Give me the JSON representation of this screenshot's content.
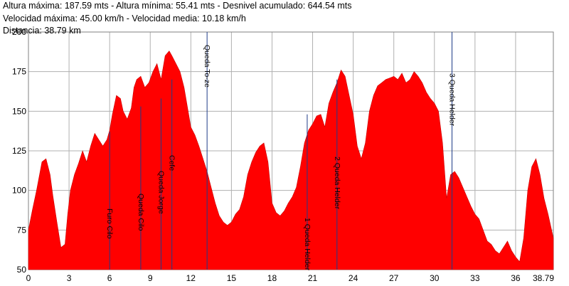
{
  "header": {
    "line1": "Altura máxima: 187.59 mts - Altura mínima: 55.41 mts - Desnivel acumulado: 644.54 mts",
    "line2": "Velocidad máxima: 45.00 km/h - Velocidad media: 10.18 km/h",
    "line3": "Distancia: 38.79 km"
  },
  "colors": {
    "fill": "#ff0000",
    "grid": "#b0b0b0",
    "waypoint_line": "#1f3c88"
  },
  "chart_data": {
    "type": "area",
    "title": "",
    "xlabel": "",
    "ylabel": "",
    "xlim": [
      0,
      38.79
    ],
    "ylim": [
      50,
      200
    ],
    "grid": true,
    "x_ticks": [
      {
        "v": 0,
        "label": "0"
      },
      {
        "v": 3,
        "label": "3"
      },
      {
        "v": 6,
        "label": "6"
      },
      {
        "v": 9,
        "label": "9"
      },
      {
        "v": 12,
        "label": "12"
      },
      {
        "v": 15,
        "label": "15"
      },
      {
        "v": 18,
        "label": "18"
      },
      {
        "v": 21,
        "label": "21"
      },
      {
        "v": 24,
        "label": "24"
      },
      {
        "v": 27,
        "label": "27"
      },
      {
        "v": 30,
        "label": "30"
      },
      {
        "v": 33,
        "label": "33"
      },
      {
        "v": 36,
        "label": "36"
      },
      {
        "v": 38.79,
        "label": "38.79"
      }
    ],
    "y_ticks": [
      {
        "v": 50,
        "label": "50"
      },
      {
        "v": 75,
        "label": "75"
      },
      {
        "v": 100,
        "label": "100"
      },
      {
        "v": 125,
        "label": "125"
      },
      {
        "v": 150,
        "label": "150"
      },
      {
        "v": 175,
        "label": "175"
      },
      {
        "v": 200,
        "label": "200"
      }
    ],
    "series": [
      {
        "x": [
          0,
          0.3,
          0.6,
          1.0,
          1.3,
          1.6,
          1.8,
          2.1,
          2.4,
          2.7,
          2.9,
          3.1,
          3.4,
          3.7,
          4.0,
          4.3,
          4.6,
          4.9,
          5.2,
          5.5,
          5.8,
          6.0,
          6.2,
          6.5,
          6.8,
          7.0,
          7.3,
          7.6,
          7.8,
          8.0,
          8.3,
          8.6,
          8.9,
          9.2,
          9.5,
          9.8,
          10.1,
          10.4,
          10.6,
          10.9,
          11.2,
          11.5,
          11.8,
          12.0,
          12.3,
          12.6,
          12.9,
          13.2,
          13.5,
          13.8,
          14.1,
          14.4,
          14.7,
          15.0,
          15.3,
          15.6,
          15.9,
          16.2,
          16.5,
          16.8,
          17.1,
          17.4,
          17.7,
          18.0,
          18.3,
          18.6,
          18.9,
          19.2,
          19.5,
          19.8,
          20.1,
          20.4,
          20.7,
          21.0,
          21.3,
          21.6,
          21.9,
          22.2,
          22.5,
          22.8,
          23.1,
          23.4,
          23.7,
          24.0,
          24.3,
          24.6,
          24.9,
          25.2,
          25.5,
          25.8,
          26.1,
          26.4,
          26.7,
          27.0,
          27.3,
          27.6,
          27.9,
          28.2,
          28.5,
          28.8,
          29.1,
          29.4,
          29.7,
          30.0,
          30.3,
          30.6,
          30.9,
          31.2,
          31.5,
          31.8,
          32.1,
          32.4,
          32.7,
          33.0,
          33.3,
          33.6,
          33.9,
          34.2,
          34.5,
          34.8,
          35.1,
          35.4,
          35.7,
          36.0,
          36.3,
          36.6,
          36.9,
          37.2,
          37.5,
          37.8,
          38.1,
          38.4,
          38.79
        ],
        "y": [
          75,
          88,
          100,
          118,
          120,
          110,
          97,
          80,
          64,
          66,
          85,
          100,
          110,
          117,
          125,
          118,
          128,
          136,
          132,
          128,
          132,
          138,
          148,
          160,
          158,
          150,
          145,
          152,
          165,
          170,
          172,
          165,
          168,
          175,
          180,
          170,
          185,
          188,
          185,
          180,
          175,
          165,
          150,
          140,
          135,
          128,
          120,
          112,
          102,
          92,
          84,
          80,
          78,
          80,
          85,
          88,
          96,
          110,
          118,
          124,
          128,
          130,
          118,
          92,
          86,
          84,
          87,
          92,
          96,
          102,
          115,
          130,
          138,
          142,
          147,
          148,
          140,
          155,
          162,
          168,
          176,
          172,
          160,
          148,
          128,
          120,
          130,
          150,
          160,
          166,
          168,
          170,
          171,
          172,
          170,
          174,
          168,
          170,
          175,
          172,
          168,
          162,
          158,
          155,
          150,
          130,
          95,
          110,
          112,
          108,
          102,
          96,
          90,
          85,
          82,
          75,
          68,
          66,
          62,
          60,
          64,
          68,
          62,
          58,
          55,
          70,
          100,
          115,
          120,
          110,
          95,
          85,
          70
        ]
      }
    ],
    "waypoints": [
      {
        "x": 6.0,
        "label": "Furo Cilo",
        "side": "below",
        "top_val": 137
      },
      {
        "x": 8.3,
        "label": "Queda Cilo",
        "side": "below",
        "top_val": 153
      },
      {
        "x": 9.8,
        "label": "Queda Jorge",
        "side": "below",
        "top_val": 158
      },
      {
        "x": 10.6,
        "label": "Cefe",
        "side": "below",
        "top_val": 170
      },
      {
        "x": 13.2,
        "label": "Queda To-ze",
        "side": "above",
        "top_val": 200
      },
      {
        "x": 20.6,
        "label": "1 Queda Helder",
        "side": "below",
        "top_val": 148
      },
      {
        "x": 22.8,
        "label": "2 Queda Helder",
        "side": "below",
        "top_val": 170
      },
      {
        "x": 31.3,
        "label": "3 Queda Helder",
        "side": "above",
        "top_val": 200
      }
    ]
  }
}
